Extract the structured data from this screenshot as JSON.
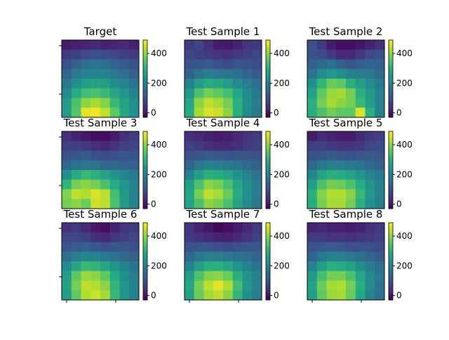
{
  "chart_data": {
    "type": "heatmap",
    "colormap": "viridis",
    "vmin": -30,
    "vmax": 490,
    "colorbar_ticks": [
      0,
      200,
      400
    ],
    "grid_rows": 8,
    "grid_cols": 8,
    "panels": [
      {
        "title": "Target",
        "z": [
          [
            10,
            20,
            25,
            30,
            20,
            25,
            30,
            20
          ],
          [
            60,
            70,
            90,
            100,
            95,
            85,
            70,
            60
          ],
          [
            100,
            130,
            160,
            170,
            160,
            140,
            120,
            100
          ],
          [
            140,
            180,
            200,
            210,
            200,
            180,
            160,
            130
          ],
          [
            180,
            230,
            260,
            270,
            260,
            230,
            200,
            170
          ],
          [
            220,
            290,
            330,
            340,
            320,
            280,
            240,
            200
          ],
          [
            260,
            340,
            400,
            420,
            390,
            320,
            270,
            230
          ],
          [
            260,
            350,
            470,
            480,
            440,
            360,
            280,
            230
          ]
        ]
      },
      {
        "title": "Test Sample 1",
        "z": [
          [
            60,
            80,
            40,
            10,
            5,
            20,
            50,
            60
          ],
          [
            80,
            70,
            60,
            50,
            40,
            60,
            70,
            80
          ],
          [
            100,
            110,
            120,
            100,
            90,
            110,
            100,
            90
          ],
          [
            130,
            170,
            190,
            180,
            170,
            160,
            140,
            120
          ],
          [
            200,
            260,
            290,
            280,
            260,
            220,
            190,
            160
          ],
          [
            250,
            340,
            380,
            360,
            330,
            280,
            220,
            180
          ],
          [
            280,
            400,
            440,
            420,
            380,
            300,
            230,
            190
          ],
          [
            290,
            420,
            460,
            450,
            400,
            300,
            220,
            180
          ]
        ]
      },
      {
        "title": "Test Sample 2",
        "z": [
          [
            100,
            60,
            10,
            -10,
            -10,
            0,
            20,
            40
          ],
          [
            100,
            90,
            60,
            30,
            30,
            60,
            90,
            100
          ],
          [
            130,
            150,
            160,
            130,
            110,
            130,
            140,
            130
          ],
          [
            170,
            220,
            250,
            230,
            200,
            190,
            180,
            150
          ],
          [
            230,
            310,
            370,
            360,
            300,
            260,
            220,
            180
          ],
          [
            270,
            360,
            410,
            420,
            380,
            300,
            250,
            200
          ],
          [
            300,
            380,
            420,
            400,
            380,
            320,
            260,
            200
          ],
          [
            290,
            340,
            380,
            360,
            360,
            460,
            300,
            200
          ]
        ]
      },
      {
        "title": "Test Sample 3",
        "z": [
          [
            40,
            20,
            5,
            -10,
            -10,
            10,
            40,
            60
          ],
          [
            70,
            70,
            60,
            40,
            30,
            50,
            70,
            80
          ],
          [
            100,
            110,
            120,
            100,
            90,
            100,
            110,
            100
          ],
          [
            140,
            170,
            180,
            170,
            150,
            150,
            140,
            130
          ],
          [
            230,
            290,
            320,
            300,
            270,
            240,
            210,
            180
          ],
          [
            310,
            380,
            400,
            380,
            340,
            290,
            240,
            200
          ],
          [
            390,
            440,
            430,
            460,
            440,
            330,
            250,
            200
          ],
          [
            380,
            400,
            370,
            450,
            440,
            340,
            250,
            200
          ]
        ]
      },
      {
        "title": "Test Sample 4",
        "z": [
          [
            40,
            30,
            20,
            10,
            15,
            30,
            50,
            60
          ],
          [
            70,
            60,
            40,
            30,
            30,
            40,
            60,
            70
          ],
          [
            100,
            110,
            120,
            110,
            100,
            110,
            110,
            100
          ],
          [
            140,
            180,
            200,
            190,
            180,
            170,
            150,
            130
          ],
          [
            200,
            260,
            300,
            290,
            270,
            230,
            200,
            170
          ],
          [
            260,
            340,
            400,
            380,
            340,
            280,
            230,
            190
          ],
          [
            280,
            380,
            440,
            420,
            370,
            290,
            230,
            190
          ],
          [
            270,
            340,
            400,
            380,
            340,
            270,
            220,
            180
          ]
        ]
      },
      {
        "title": "Test Sample 5",
        "z": [
          [
            10,
            30,
            20,
            10,
            10,
            30,
            60,
            70
          ],
          [
            70,
            70,
            60,
            50,
            50,
            60,
            80,
            90
          ],
          [
            100,
            110,
            120,
            110,
            100,
            110,
            120,
            110
          ],
          [
            150,
            180,
            200,
            190,
            180,
            170,
            150,
            130
          ],
          [
            210,
            270,
            300,
            290,
            270,
            240,
            210,
            180
          ],
          [
            260,
            340,
            380,
            370,
            340,
            290,
            240,
            200
          ],
          [
            300,
            390,
            430,
            430,
            400,
            320,
            250,
            200
          ],
          [
            290,
            380,
            420,
            420,
            380,
            300,
            230,
            190
          ]
        ]
      },
      {
        "title": "Test Sample 6",
        "z": [
          [
            40,
            60,
            30,
            5,
            -10,
            20,
            50,
            60
          ],
          [
            80,
            80,
            70,
            40,
            30,
            50,
            70,
            80
          ],
          [
            110,
            120,
            130,
            110,
            100,
            110,
            110,
            100
          ],
          [
            160,
            190,
            210,
            200,
            180,
            170,
            150,
            130
          ],
          [
            220,
            280,
            320,
            310,
            280,
            240,
            200,
            170
          ],
          [
            260,
            360,
            410,
            400,
            360,
            290,
            230,
            190
          ],
          [
            270,
            380,
            440,
            430,
            400,
            310,
            240,
            200
          ],
          [
            260,
            360,
            430,
            450,
            420,
            320,
            240,
            200
          ]
        ]
      },
      {
        "title": "Test Sample 7",
        "z": [
          [
            50,
            20,
            0,
            -20,
            -10,
            10,
            30,
            60
          ],
          [
            60,
            40,
            30,
            20,
            20,
            30,
            50,
            70
          ],
          [
            100,
            110,
            110,
            100,
            90,
            100,
            110,
            110
          ],
          [
            150,
            180,
            200,
            190,
            180,
            170,
            160,
            140
          ],
          [
            200,
            260,
            300,
            300,
            280,
            240,
            200,
            170
          ],
          [
            260,
            340,
            390,
            400,
            370,
            300,
            240,
            200
          ],
          [
            280,
            380,
            440,
            470,
            430,
            330,
            250,
            200
          ],
          [
            270,
            370,
            420,
            440,
            400,
            310,
            230,
            190
          ]
        ]
      },
      {
        "title": "Test Sample 8",
        "z": [
          [
            20,
            30,
            20,
            20,
            10,
            20,
            40,
            60
          ],
          [
            60,
            60,
            50,
            50,
            40,
            50,
            60,
            70
          ],
          [
            100,
            110,
            120,
            110,
            100,
            100,
            100,
            90
          ],
          [
            140,
            180,
            200,
            200,
            180,
            160,
            140,
            120
          ],
          [
            200,
            260,
            300,
            290,
            270,
            230,
            190,
            160
          ],
          [
            250,
            330,
            380,
            380,
            340,
            280,
            220,
            180
          ],
          [
            270,
            370,
            420,
            430,
            380,
            300,
            220,
            170
          ],
          [
            260,
            360,
            410,
            420,
            370,
            280,
            200,
            160
          ]
        ]
      }
    ]
  }
}
